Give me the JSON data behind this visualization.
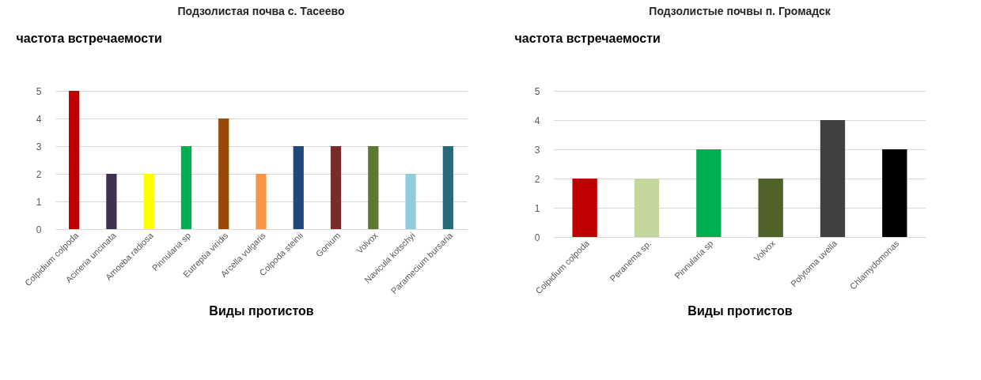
{
  "chart_data": [
    {
      "type": "bar",
      "title": "Подзолистая почва с. Тасеево",
      "ylabel": "частота встречаемости",
      "xlabel": "Виды протистов",
      "categories": [
        "Colpidium colpoda",
        "Acineria uncinata",
        "Amoeba radiosa",
        "Pinnularia sp",
        "Eutreptia viridis",
        "Arcella vulgaris",
        "Colpoda steinii",
        "Gonium",
        "Volvox",
        "Navicula kotschyi",
        "Paramecium bursaria"
      ],
      "values": [
        5,
        2,
        2,
        3,
        4,
        2,
        3,
        3,
        3,
        2,
        3
      ],
      "colors": [
        "#c00000",
        "#403151",
        "#ffff00",
        "#00b050",
        "#984807",
        "#f79646",
        "#1f497d",
        "#772c2a",
        "#5b7a2f",
        "#92cddc",
        "#276a7c"
      ],
      "ylim": [
        0,
        5
      ],
      "yticks": [
        0,
        1,
        2,
        3,
        4,
        5
      ],
      "grid": "y"
    },
    {
      "type": "bar",
      "title": "Подзолистые почвы п. Громадск",
      "ylabel": "частота встречаемости",
      "xlabel": "Виды протистов",
      "categories": [
        "Colpidium colpoda",
        "Peranema sp.",
        "Pinnularia sp",
        "Volvox",
        "Polytoma uvella",
        "Chlamydomonas"
      ],
      "values": [
        2,
        2,
        3,
        2,
        4,
        3
      ],
      "colors": [
        "#c00000",
        "#c3d69b",
        "#00b050",
        "#4f6228",
        "#404040",
        "#000000"
      ],
      "ylim": [
        0,
        5
      ],
      "yticks": [
        0,
        1,
        2,
        3,
        4,
        5
      ],
      "grid": "y"
    }
  ]
}
